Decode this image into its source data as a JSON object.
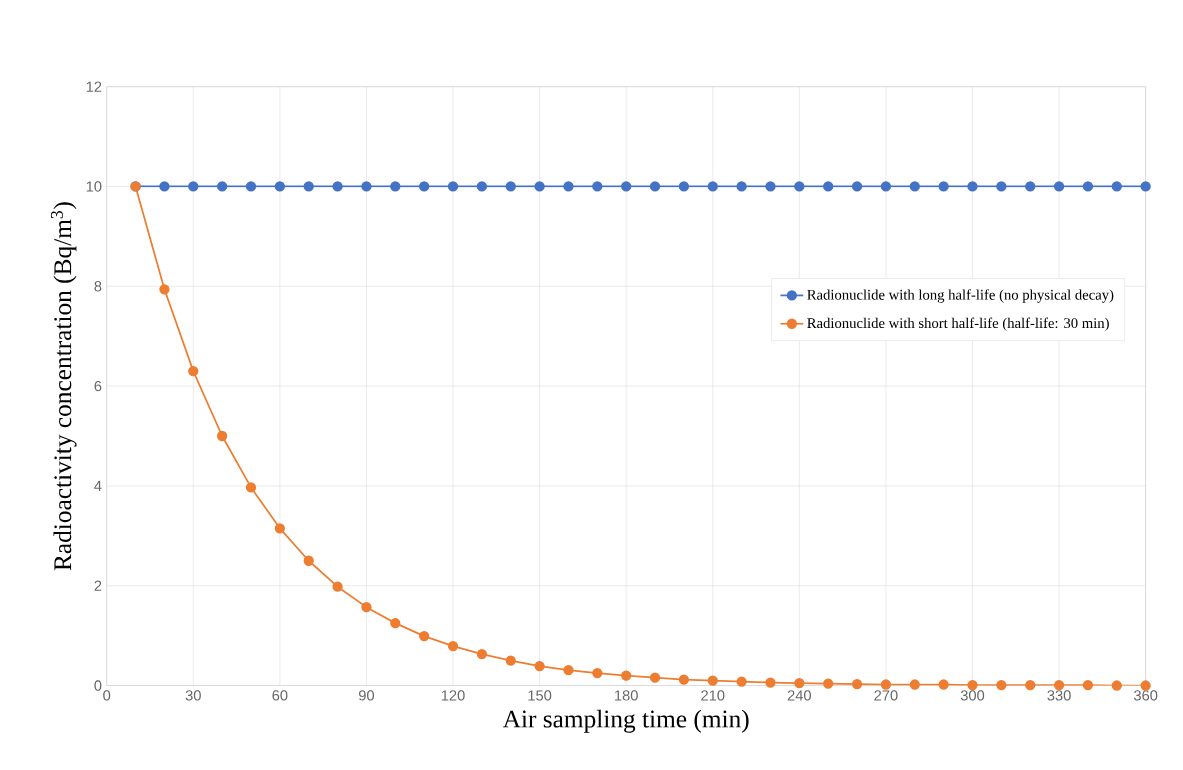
{
  "chart_data": {
    "type": "line",
    "xlabel": "Air sampling time (min)",
    "ylabel": "Radioactivity concentration (Bq/m$^{3}$)",
    "x": [
      10,
      20,
      30,
      40,
      50,
      60,
      70,
      80,
      90,
      100,
      110,
      120,
      130,
      140,
      150,
      160,
      170,
      180,
      190,
      200,
      210,
      220,
      230,
      240,
      250,
      260,
      270,
      280,
      290,
      300,
      310,
      320,
      330,
      340,
      350,
      360
    ],
    "series": [
      {
        "name": "Radionuclide with long half-life (no physical decay)",
        "color": "#4472c4",
        "values": [
          10,
          10,
          10,
          10,
          10,
          10,
          10,
          10,
          10,
          10,
          10,
          10,
          10,
          10,
          10,
          10,
          10,
          10,
          10,
          10,
          10,
          10,
          10,
          10,
          10,
          10,
          10,
          10,
          10,
          10,
          10,
          10,
          10,
          10,
          10,
          10
        ]
      },
      {
        "name": "Radionuclide with short half-life (half-life: 30 min)",
        "color": "#ed7d31",
        "values": [
          10,
          7.94,
          6.3,
          5.0,
          3.97,
          3.15,
          2.5,
          1.98,
          1.57,
          1.25,
          0.99,
          0.79,
          0.63,
          0.5,
          0.39,
          0.31,
          0.25,
          0.2,
          0.16,
          0.12,
          0.1,
          0.08,
          0.06,
          0.05,
          0.04,
          0.03,
          0.02,
          0.02,
          0.02,
          0.01,
          0.01,
          0.01,
          0.01,
          0.01,
          0,
          0
        ]
      }
    ],
    "xlim": [
      0,
      360
    ],
    "xticks": [
      0,
      30,
      60,
      90,
      120,
      150,
      180,
      210,
      240,
      270,
      300,
      330,
      360
    ],
    "ylim": [
      0,
      12
    ],
    "yticks": [
      0,
      2,
      4,
      6,
      8,
      10,
      12
    ],
    "grid": true,
    "legend": "right",
    "marker": "circle",
    "line_style": "solid"
  }
}
